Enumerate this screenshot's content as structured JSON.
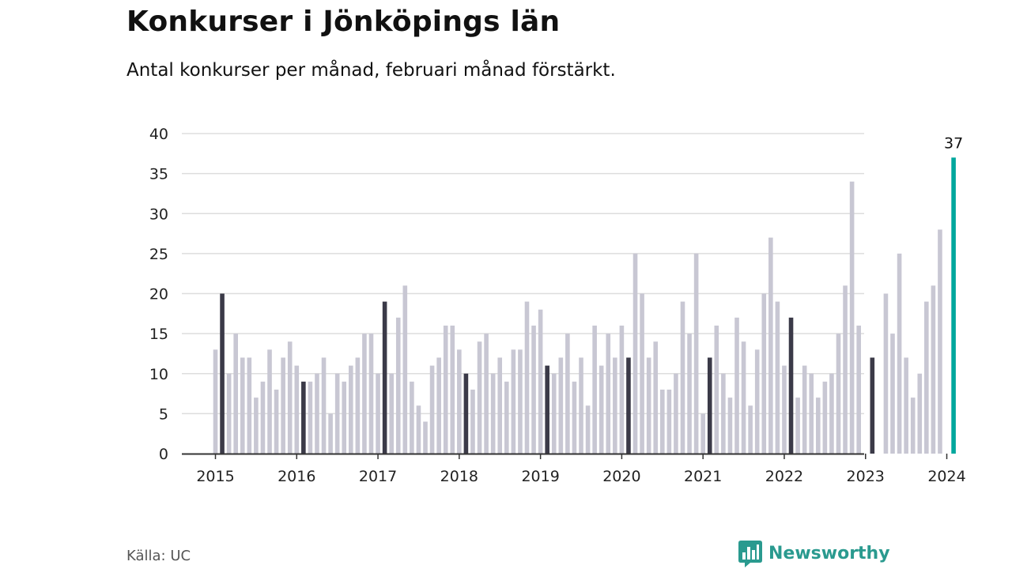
{
  "title": "Konkurser i Jönköpings län",
  "subtitle": "Antal konkurser per månad, februari månad förstärkt.",
  "source": "Källa: UC",
  "brand": {
    "name": "Newsworthy",
    "color": "#2a9a8f",
    "icon": "newsworthy-logo-icon"
  },
  "colors": {
    "bar": "#c8c7d3",
    "highlight_bar": "#3b3a48",
    "latest_bar": "#00a79d",
    "grid": "#dddddd",
    "axis": "#333333",
    "text": "#111111"
  },
  "chart_data": {
    "type": "bar",
    "title": "Konkurser i Jönköpings län",
    "subtitle": "Antal konkurser per månad, februari månad förstärkt.",
    "xlabel": "",
    "ylabel": "",
    "ylim": [
      0,
      40
    ],
    "yticks": [
      0,
      5,
      10,
      15,
      20,
      25,
      30,
      35,
      40
    ],
    "grid": true,
    "legend": "none",
    "start": "2015-01",
    "x_tick_labels": [
      "2015",
      "2016",
      "2017",
      "2018",
      "2019",
      "2020",
      "2021",
      "2022",
      "2023",
      "2024"
    ],
    "highlight": "February of each year",
    "values": [
      13,
      20,
      10,
      15,
      12,
      12,
      7,
      9,
      13,
      8,
      12,
      14,
      11,
      9,
      9,
      10,
      12,
      5,
      10,
      9,
      11,
      12,
      15,
      15,
      10,
      19,
      10,
      17,
      21,
      9,
      6,
      4,
      11,
      12,
      16,
      16,
      13,
      10,
      8,
      14,
      15,
      10,
      12,
      9,
      13,
      13,
      19,
      16,
      18,
      11,
      10,
      12,
      15,
      9,
      12,
      6,
      16,
      11,
      15,
      12,
      16,
      12,
      25,
      20,
      12,
      14,
      8,
      8,
      10,
      19,
      15,
      25,
      5,
      12,
      16,
      10,
      7,
      17,
      14,
      6,
      13,
      20,
      27,
      19,
      11,
      17,
      7,
      11,
      10,
      7,
      9,
      10,
      15,
      21,
      34,
      16,
      null,
      12,
      null,
      20,
      15,
      25,
      12,
      7,
      10,
      19,
      21,
      28,
      null,
      37
    ],
    "data_labels": [
      {
        "index": 109,
        "value": "37"
      }
    ]
  }
}
